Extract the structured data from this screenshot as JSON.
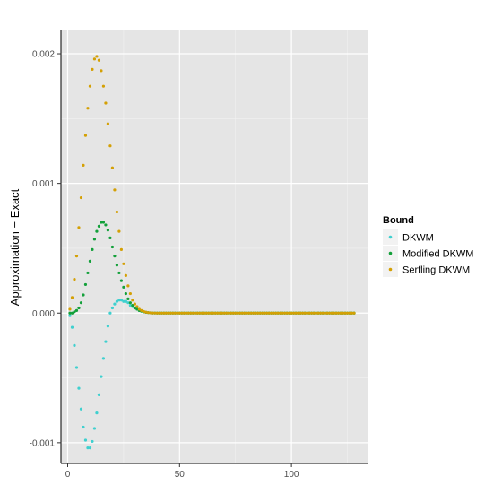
{
  "chart_data": {
    "type": "scatter",
    "xlabel": "",
    "ylabel": "Approximation − Exact",
    "xlim": [
      -3,
      134
    ],
    "ylim": [
      -0.00116,
      0.00218
    ],
    "x_ticks": [
      0,
      50,
      100
    ],
    "x_tick_labels": [
      "0",
      "50",
      "100"
    ],
    "y_ticks": [
      -0.001,
      0.0,
      0.001,
      0.002
    ],
    "y_tick_labels": [
      "-0.001",
      "0.000",
      "0.001",
      "0.002"
    ],
    "grid": true,
    "legend_position": "right",
    "legend_title": "Bound",
    "series_note": "x = 1..128; values omitted for x >= 40 are 0",
    "x": [
      1,
      2,
      3,
      4,
      5,
      6,
      7,
      8,
      9,
      10,
      11,
      12,
      13,
      14,
      15,
      16,
      17,
      18,
      19,
      20,
      21,
      22,
      23,
      24,
      25,
      26,
      27,
      28,
      29,
      30,
      31,
      32,
      33,
      34,
      35,
      36,
      37,
      38,
      39,
      40
    ],
    "series": [
      {
        "name": "DKWM",
        "color": "#3fd0cf",
        "values": [
          -2e-05,
          -0.00011,
          -0.00025,
          -0.00042,
          -0.00058,
          -0.00074,
          -0.00088,
          -0.00098,
          -0.00104,
          -0.00104,
          -0.00099,
          -0.00089,
          -0.00077,
          -0.00063,
          -0.00049,
          -0.00035,
          -0.00022,
          -0.0001,
          0.0,
          4e-05,
          7e-05,
          9e-05,
          0.0001,
          0.0001,
          9e-05,
          9e-05,
          8e-05,
          6e-05,
          5e-05,
          4e-05,
          3e-05,
          2e-05,
          1.5e-05,
          1e-05,
          6e-06,
          4e-06,
          2e-06,
          1e-06,
          5e-07,
          0.0
        ]
      },
      {
        "name": "Modified DKWM",
        "color": "#13a03a",
        "values": [
          0.0,
          0.0,
          1e-05,
          2e-05,
          4e-05,
          8e-05,
          0.00014,
          0.00022,
          0.00031,
          0.0004,
          0.00049,
          0.00057,
          0.00063,
          0.00067,
          0.0007,
          0.0007,
          0.00068,
          0.00064,
          0.00058,
          0.00051,
          0.00044,
          0.00037,
          0.00031,
          0.00025,
          0.0002,
          0.00015,
          0.00011,
          8e-05,
          6e-05,
          4e-05,
          3e-05,
          2e-05,
          1.5e-05,
          1e-05,
          6e-06,
          4e-06,
          2e-06,
          1e-06,
          5e-07,
          0.0
        ]
      },
      {
        "name": "Serfling DKWM",
        "color": "#d4a005",
        "values": [
          3e-05,
          0.00012,
          0.00026,
          0.00044,
          0.00066,
          0.00089,
          0.00114,
          0.00137,
          0.00158,
          0.00175,
          0.00188,
          0.00196,
          0.00198,
          0.00195,
          0.00187,
          0.00175,
          0.00162,
          0.00146,
          0.00129,
          0.00112,
          0.00095,
          0.00078,
          0.00063,
          0.00049,
          0.00038,
          0.00029,
          0.00021,
          0.00015,
          0.0001,
          7e-05,
          5e-05,
          3e-05,
          2e-05,
          1.2e-05,
          7e-06,
          4e-06,
          2e-06,
          1e-06,
          5e-07,
          0.0
        ]
      }
    ]
  }
}
